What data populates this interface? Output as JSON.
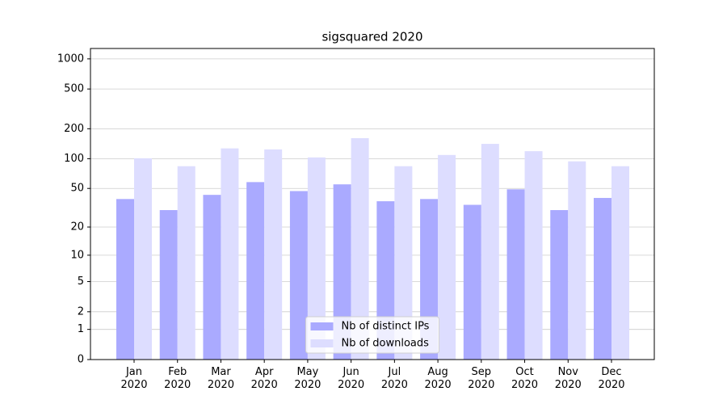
{
  "chart_data": {
    "type": "bar",
    "title": "sigsquared 2020",
    "categories": [
      "Jan\n2020",
      "Feb\n2020",
      "Mar\n2020",
      "Apr\n2020",
      "May\n2020",
      "Jun\n2020",
      "Jul\n2020",
      "Aug\n2020",
      "Sep\n2020",
      "Oct\n2020",
      "Nov\n2020",
      "Dec\n2020"
    ],
    "series": [
      {
        "name": "Nb of distinct IPs",
        "color": "#aaaaff",
        "values": [
          39,
          30,
          43,
          58,
          47,
          55,
          37,
          39,
          34,
          49,
          30,
          40
        ]
      },
      {
        "name": "Nb of downloads",
        "color": "#ddddff",
        "values": [
          101,
          84,
          127,
          124,
          103,
          161,
          84,
          109,
          141,
          119,
          94,
          84
        ]
      }
    ],
    "yscale": "log1p",
    "ylim": [
      0,
      1270
    ],
    "yticks": [
      0,
      1,
      2,
      5,
      10,
      20,
      50,
      100,
      200,
      500,
      1000
    ],
    "grid": true,
    "legend": "lower center"
  }
}
